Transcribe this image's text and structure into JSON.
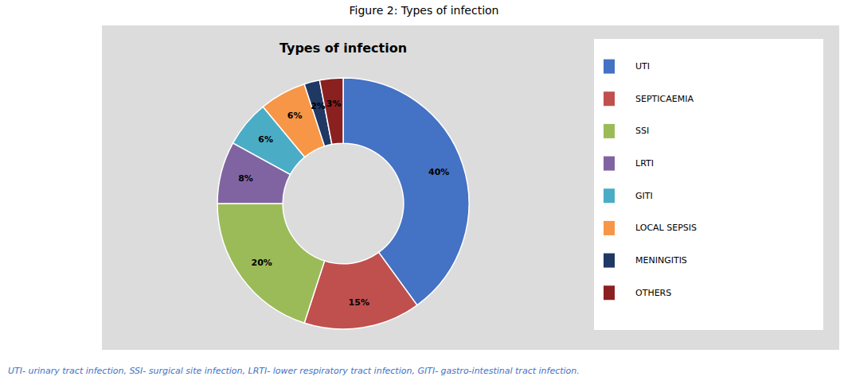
{
  "chart_data": {
    "type": "pie",
    "title": "Types of infection",
    "annotations": [
      "Figure 2: Types of infection",
      "UTI- urinary tract infection, SSI- surgical site infection, LRTI- lower respiratory tract infection, GITI- gastro-intestinal tract infection."
    ],
    "categories": [
      "UTI",
      "SEPTICAEMIA",
      "SSI",
      "LRTI",
      "GITI",
      "LOCAL SEPSIS",
      "MENINGITIS",
      "OTHERS"
    ],
    "values": [
      40,
      15,
      20,
      8,
      6,
      6,
      2,
      3
    ],
    "value_labels": [
      "40%",
      "15%",
      "20%",
      "8%",
      "6%",
      "6%",
      "2%",
      "3%"
    ],
    "colors": [
      "#4472C4",
      "#C0504D",
      "#9BBB59",
      "#8064A2",
      "#4BACC6",
      "#F79646",
      "#1F3864",
      "#8B2020"
    ],
    "data_labels": true,
    "legend": "right"
  }
}
